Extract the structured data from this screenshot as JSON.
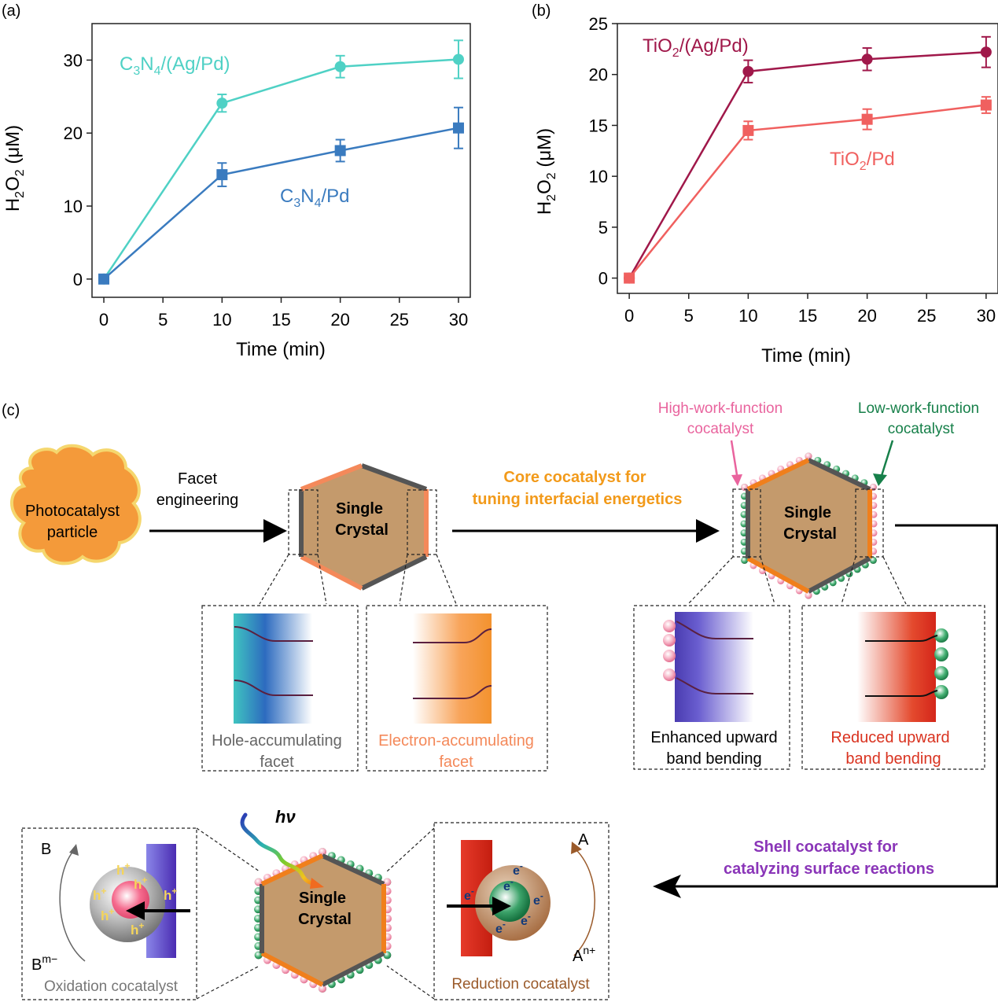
{
  "panels": {
    "a": "(a)",
    "b": "(b)",
    "c": "(c)"
  },
  "chart_data": [
    {
      "type": "line",
      "panel": "a",
      "xlabel": "Time (min)",
      "ylabel": "H2O2 (μM)",
      "xlim": [
        -1,
        31
      ],
      "ylim": [
        -2.5,
        35
      ],
      "xticks": [
        0,
        5,
        10,
        15,
        20,
        25,
        30
      ],
      "yticks": [
        0,
        10,
        20,
        30
      ],
      "series": [
        {
          "name": "C3N4/(Ag/Pd)",
          "label_main": "C",
          "sub1": "3",
          "mid": "N",
          "sub2": "4",
          "tail": "/(Ag/Pd)",
          "color": "#4fd1c5",
          "marker": "circle",
          "x": [
            0,
            10,
            20,
            30
          ],
          "y": [
            0,
            24.1,
            29.1,
            30.1
          ],
          "err": [
            0,
            1.2,
            1.5,
            2.6
          ]
        },
        {
          "name": "C3N4/Pd",
          "label_main": "C",
          "sub1": "3",
          "mid": "N",
          "sub2": "4",
          "tail": "/Pd",
          "color": "#3a7bbf",
          "marker": "square",
          "x": [
            0,
            10,
            20,
            30
          ],
          "y": [
            0,
            14.3,
            17.6,
            20.7
          ],
          "err": [
            0,
            1.6,
            1.5,
            2.8
          ]
        }
      ]
    },
    {
      "type": "line",
      "panel": "b",
      "xlabel": "Time (min)",
      "ylabel": "H2O2 (μM)",
      "xlim": [
        -1,
        31
      ],
      "ylim": [
        -1.5,
        25
      ],
      "xticks": [
        0,
        5,
        10,
        15,
        20,
        25,
        30
      ],
      "yticks": [
        0,
        5,
        10,
        15,
        20,
        25
      ],
      "series": [
        {
          "name": "TiO2/(Ag/Pd)",
          "label_main": "TiO",
          "sub1": "2",
          "tail": "/(Ag/Pd)",
          "color": "#a0184a",
          "marker": "circle",
          "x": [
            0,
            10,
            20,
            30
          ],
          "y": [
            0,
            20.3,
            21.5,
            22.2
          ],
          "err": [
            0,
            1.1,
            1.1,
            1.5
          ]
        },
        {
          "name": "TiO2/Pd",
          "label_main": "TiO",
          "sub1": "2",
          "tail": "/Pd",
          "color": "#f0605f",
          "marker": "square",
          "x": [
            0,
            10,
            20,
            30
          ],
          "y": [
            0,
            14.5,
            15.6,
            17.0
          ],
          "err": [
            0,
            0.9,
            1.0,
            0.8
          ]
        }
      ]
    }
  ],
  "diagram": {
    "particle": [
      "Photocatalyst",
      "particle"
    ],
    "facet_eng": [
      "Facet",
      "engineering"
    ],
    "crystal": [
      "Single",
      "Crystal"
    ],
    "core_text": [
      "Core cocatalyst for",
      "tuning interfacial energetics"
    ],
    "high_wf": [
      "High-work-function",
      "cocatalyst"
    ],
    "low_wf": [
      "Low-work-function",
      "cocatalyst"
    ],
    "hole_facet": [
      "Hole-accumulating",
      "facet"
    ],
    "electron_facet": [
      "Electron-accumulating",
      "facet"
    ],
    "enhanced": [
      "Enhanced upward",
      "band bending"
    ],
    "reduced": [
      "Reduced upward",
      "band bending"
    ],
    "shell_text": [
      "Shell cocatalyst for",
      "catalyzing surface reactions"
    ],
    "hv": "hν",
    "ox_label": "Oxidation cocatalyst",
    "red_label": "Reduction cocatalyst",
    "b_prod": "B",
    "b_react": "B",
    "b_charge": "m−",
    "a_prod": "A",
    "a_react": "A",
    "a_charge": "n+",
    "hole": "h",
    "hole_sup": "+",
    "electron": "e",
    "electron_sup": "-",
    "colors": {
      "orange": "#f29a3a",
      "core_orange": "#f07f1c",
      "brown": "#c49a6c",
      "gray": "#555555",
      "pink": "#e9649e",
      "green": "#17804a",
      "purple": "#8a35b8",
      "red": "#d9321f",
      "blue": "#3a7bbf",
      "teal": "#4fd1c5"
    }
  }
}
